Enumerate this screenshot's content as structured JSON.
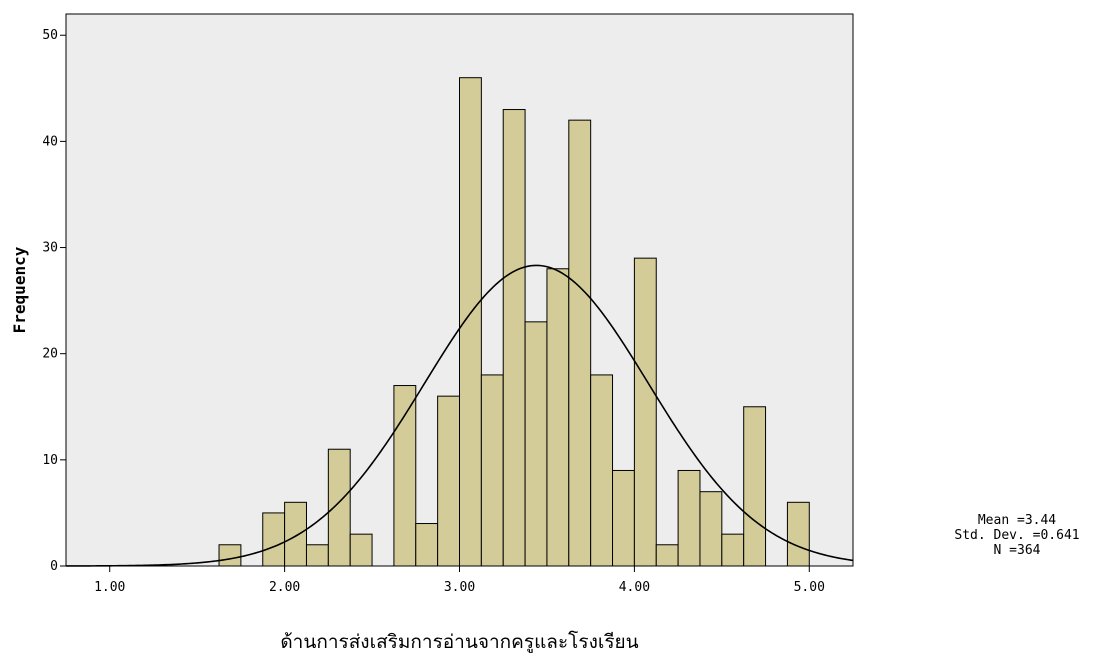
{
  "chart_data": {
    "type": "bar",
    "title": "",
    "xlabel": "ด้านการส่งเสริมการอ่านจากครูและโรงเรียน",
    "ylabel": "Frequency",
    "xlim": [
      0.75,
      5.25
    ],
    "ylim": [
      0,
      52
    ],
    "xticks": [
      "1.00",
      "2.00",
      "3.00",
      "4.00",
      "5.00"
    ],
    "yticks": [
      "0",
      "10",
      "20",
      "30",
      "40",
      "50"
    ],
    "bin_width": 0.125,
    "bins": [
      {
        "x0": 1.625,
        "x1": 1.75,
        "count": 2
      },
      {
        "x0": 1.875,
        "x1": 2.0,
        "count": 5
      },
      {
        "x0": 2.0,
        "x1": 2.125,
        "count": 6
      },
      {
        "x0": 2.125,
        "x1": 2.25,
        "count": 2
      },
      {
        "x0": 2.25,
        "x1": 2.375,
        "count": 11
      },
      {
        "x0": 2.375,
        "x1": 2.5,
        "count": 3
      },
      {
        "x0": 2.625,
        "x1": 2.75,
        "count": 17
      },
      {
        "x0": 2.75,
        "x1": 2.875,
        "count": 4
      },
      {
        "x0": 2.875,
        "x1": 3.0,
        "count": 16
      },
      {
        "x0": 3.0,
        "x1": 3.125,
        "count": 46
      },
      {
        "x0": 3.125,
        "x1": 3.25,
        "count": 18
      },
      {
        "x0": 3.25,
        "x1": 3.375,
        "count": 43
      },
      {
        "x0": 3.375,
        "x1": 3.5,
        "count": 23
      },
      {
        "x0": 3.5,
        "x1": 3.625,
        "count": 28
      },
      {
        "x0": 3.625,
        "x1": 3.75,
        "count": 42
      },
      {
        "x0": 3.75,
        "x1": 3.875,
        "count": 18
      },
      {
        "x0": 3.875,
        "x1": 4.0,
        "count": 9
      },
      {
        "x0": 4.0,
        "x1": 4.125,
        "count": 29
      },
      {
        "x0": 4.125,
        "x1": 4.25,
        "count": 2
      },
      {
        "x0": 4.25,
        "x1": 4.375,
        "count": 9
      },
      {
        "x0": 4.375,
        "x1": 4.5,
        "count": 7
      },
      {
        "x0": 4.5,
        "x1": 4.625,
        "count": 3
      },
      {
        "x0": 4.625,
        "x1": 4.75,
        "count": 15
      },
      {
        "x0": 4.875,
        "x1": 5.0,
        "count": 6
      }
    ],
    "normal_curve": {
      "mean": 3.44,
      "std": 0.641,
      "n": 364
    },
    "grid": false,
    "legend": "none",
    "stats_text": {
      "mean": "Mean =3.44",
      "std": "Std. Dev. =0.641",
      "n": "N =364"
    },
    "colors": {
      "plot_bg": "#ededed",
      "bar_fill": "#d4cc98",
      "bar_stroke": "#000000",
      "curve": "#000000"
    }
  }
}
